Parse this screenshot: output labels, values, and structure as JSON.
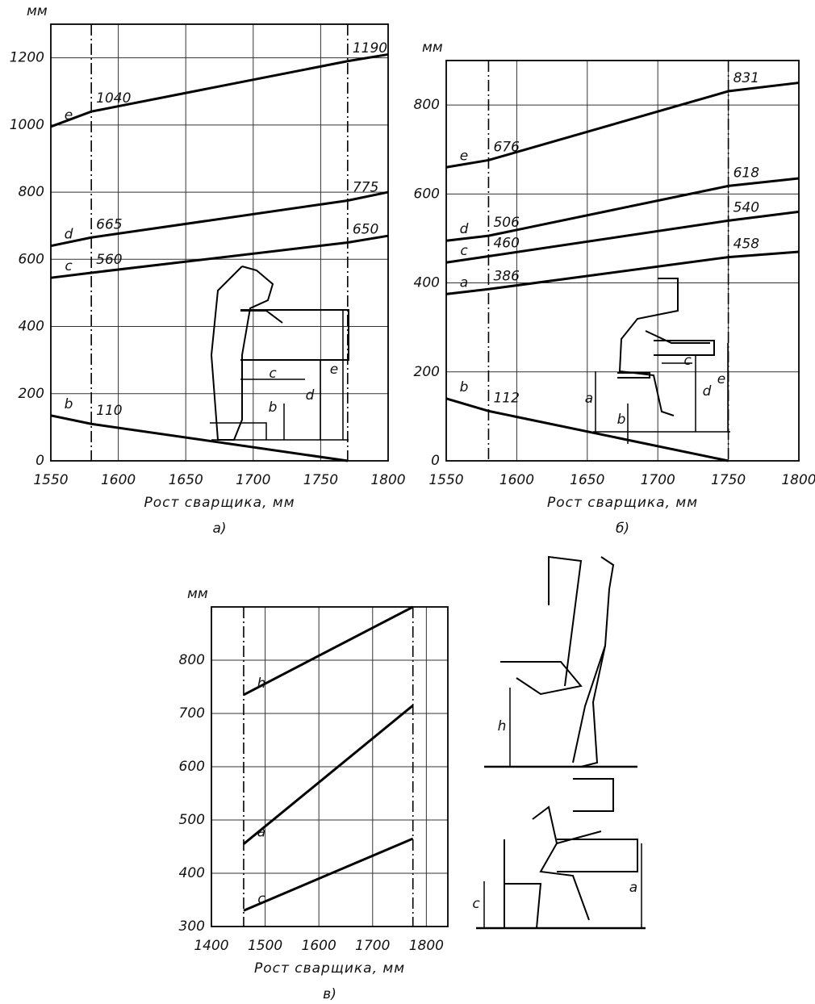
{
  "chart_data": [
    {
      "type": "line",
      "ylabel": "мм",
      "xlabel": "Рост сварщика, мм",
      "caption": "а)",
      "xlim": [
        1550,
        1800
      ],
      "ylim": [
        0,
        1300
      ],
      "xticks": [
        1550,
        1600,
        1650,
        1700,
        1750,
        1800
      ],
      "yticks": [
        0,
        200,
        400,
        600,
        800,
        1000,
        1200
      ],
      "grid": true,
      "ref_x": [
        1580,
        1770
      ],
      "series": [
        {
          "name": "e",
          "color": "#000000",
          "x": [
            1550,
            1580,
            1770,
            1800
          ],
          "values": [
            995,
            1040,
            1190,
            1210
          ],
          "value_labels": [
            null,
            "1040",
            "1190",
            null
          ]
        },
        {
          "name": "d",
          "color": "#000000",
          "x": [
            1550,
            1580,
            1770,
            1800
          ],
          "values": [
            640,
            665,
            775,
            800
          ],
          "value_labels": [
            null,
            "665",
            "775",
            null
          ]
        },
        {
          "name": "c",
          "color": "#000000",
          "x": [
            1550,
            1580,
            1770,
            1800
          ],
          "values": [
            545,
            560,
            650,
            670
          ],
          "value_labels": [
            null,
            "560",
            "650",
            null
          ]
        },
        {
          "name": "b",
          "color": "#000000",
          "x": [
            1550,
            1580,
            1770
          ],
          "values": [
            135,
            110,
            0
          ],
          "value_labels": [
            null,
            "110",
            null
          ]
        }
      ],
      "illustration_labels": [
        "c",
        "b",
        "d",
        "e"
      ]
    },
    {
      "type": "line",
      "ylabel": "мм",
      "xlabel": "Рост сварщика, мм",
      "caption": "б)",
      "xlim": [
        1550,
        1800
      ],
      "ylim": [
        0,
        900
      ],
      "xticks": [
        1550,
        1600,
        1650,
        1700,
        1750,
        1800
      ],
      "yticks": [
        0,
        200,
        400,
        600,
        800
      ],
      "grid": true,
      "ref_x": [
        1580,
        1750
      ],
      "series": [
        {
          "name": "e",
          "color": "#000000",
          "x": [
            1550,
            1580,
            1750,
            1800
          ],
          "values": [
            660,
            676,
            831,
            850
          ],
          "value_labels": [
            null,
            "676",
            "831",
            null
          ]
        },
        {
          "name": "d",
          "color": "#000000",
          "x": [
            1550,
            1580,
            1750,
            1800
          ],
          "values": [
            495,
            506,
            618,
            635
          ],
          "value_labels": [
            null,
            "506",
            "618",
            null
          ]
        },
        {
          "name": "c",
          "color": "#000000",
          "x": [
            1550,
            1580,
            1750,
            1800
          ],
          "values": [
            446,
            460,
            540,
            560
          ],
          "value_labels": [
            null,
            "460",
            "540",
            null
          ]
        },
        {
          "name": "a",
          "color": "#000000",
          "x": [
            1550,
            1580,
            1750,
            1800
          ],
          "values": [
            375,
            386,
            458,
            470
          ],
          "value_labels": [
            null,
            "386",
            "458",
            null
          ]
        },
        {
          "name": "b",
          "color": "#000000",
          "x": [
            1550,
            1580,
            1750
          ],
          "values": [
            140,
            112,
            0
          ],
          "value_labels": [
            null,
            "112",
            null
          ]
        }
      ],
      "illustration_labels": [
        "c",
        "a",
        "b",
        "d",
        "e"
      ]
    },
    {
      "type": "line",
      "ylabel": "мм",
      "xlabel": "Рост сварщика, мм",
      "caption": "в)",
      "xlim": [
        1400,
        1840
      ],
      "ylim": [
        300,
        900
      ],
      "xticks": [
        1400,
        1500,
        1600,
        1700,
        1800
      ],
      "yticks": [
        300,
        400,
        500,
        600,
        700,
        800
      ],
      "grid": true,
      "ref_x": [
        1460,
        1775
      ],
      "series": [
        {
          "name": "h",
          "color": "#000000",
          "x": [
            1460,
            1775
          ],
          "values": [
            735,
            900
          ]
        },
        {
          "name": "a",
          "color": "#000000",
          "x": [
            1460,
            1775
          ],
          "values": [
            455,
            715
          ]
        },
        {
          "name": "c",
          "color": "#000000",
          "x": [
            1460,
            1775
          ],
          "values": [
            330,
            465
          ]
        }
      ],
      "illustration_labels": [
        "h",
        "c",
        "a"
      ]
    }
  ]
}
